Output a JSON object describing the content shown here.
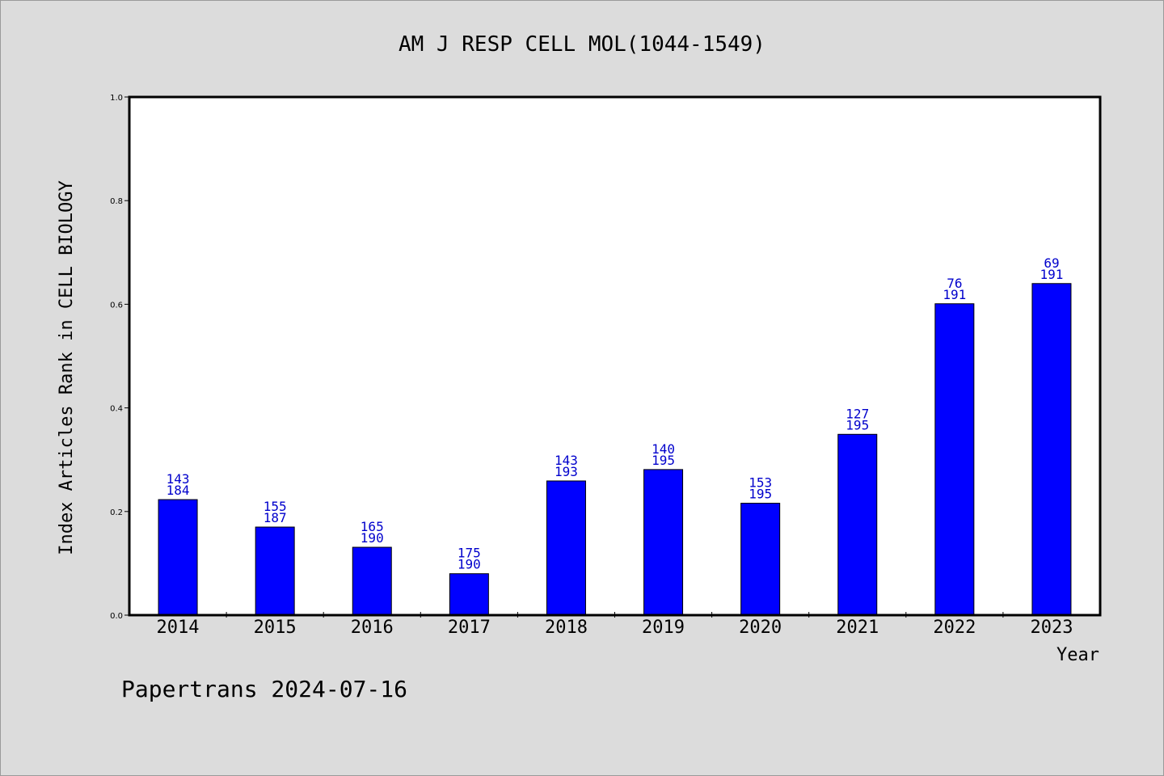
{
  "chart_data": {
    "type": "bar",
    "title": "AM J RESP CELL MOL(1044-1549)",
    "xlabel": "Year",
    "ylabel": "Index Articles Rank in CELL BIOLOGY",
    "ylim": [
      0,
      1.0
    ],
    "yticks": [
      "0.0",
      "0.2",
      "0.4",
      "0.6",
      "0.8",
      "1.0"
    ],
    "grid": false,
    "categories": [
      "2014",
      "2015",
      "2016",
      "2017",
      "2018",
      "2019",
      "2020",
      "2021",
      "2022",
      "2023"
    ],
    "values": [
      0.223,
      0.17,
      0.131,
      0.08,
      0.259,
      0.281,
      0.216,
      0.349,
      0.601,
      0.64
    ],
    "labels_top": [
      "143",
      "155",
      "165",
      "175",
      "143",
      "140",
      "153",
      "127",
      "76",
      "69"
    ],
    "labels_bottom": [
      "184",
      "187",
      "190",
      "190",
      "193",
      "195",
      "195",
      "195",
      "191",
      "191"
    ],
    "bar_color": "#0000ff",
    "label_color": "#0000cc"
  },
  "footer": "Papertrans 2024-07-16"
}
